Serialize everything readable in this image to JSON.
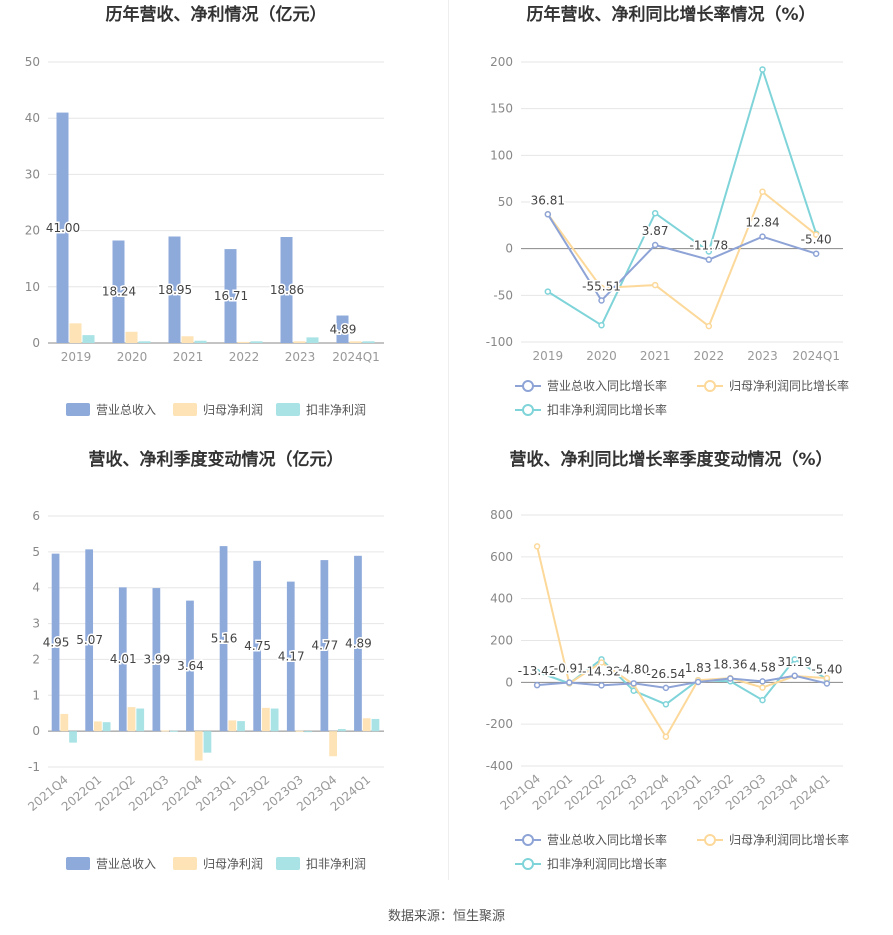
{
  "source_text": "数据来源：恒生聚源",
  "legend_labels": {
    "revenue": "营业总收入",
    "net_profit": "归母净利润",
    "deducted_profit": "扣非净利润",
    "rev_growth": "营业总收入同比增长率",
    "np_growth": "归母净利润同比增长率",
    "dp_growth": "扣非净利润同比增长率"
  },
  "colors": {
    "revenue": "#8eaadb",
    "net_profit": "#fde3b5",
    "deducted_profit": "#a9e3e6",
    "rev_line": "#8ea3d6",
    "np_line": "#fcd99a",
    "dp_line": "#7fd4d9"
  },
  "chart_data": [
    {
      "type": "bar",
      "title": "历年营收、净利情况（亿元）",
      "categories": [
        "2019",
        "2020",
        "2021",
        "2022",
        "2023",
        "2024Q1"
      ],
      "ylim": [
        0,
        50
      ],
      "yticks": [
        0,
        10,
        20,
        30,
        40,
        50
      ],
      "series": [
        {
          "name": "营业总收入",
          "values": [
            41.0,
            18.24,
            18.95,
            16.71,
            18.86,
            4.89
          ],
          "labels": [
            "41.00",
            "18.24",
            "18.95",
            "16.71",
            "18.86",
            "4.89"
          ]
        },
        {
          "name": "归母净利润",
          "values": [
            3.5,
            2.0,
            1.2,
            0.2,
            0.3,
            0.3
          ]
        },
        {
          "name": "扣非净利润",
          "values": [
            1.4,
            0.3,
            0.4,
            0.3,
            1.0,
            0.3
          ]
        }
      ],
      "legend": "bottom"
    },
    {
      "type": "line",
      "title": "历年营收、净利同比增长率情况（%）",
      "categories": [
        "2019",
        "2020",
        "2021",
        "2022",
        "2023",
        "2024Q1"
      ],
      "ylim": [
        -100,
        200
      ],
      "yticks": [
        -100,
        -50,
        0,
        50,
        100,
        150,
        200
      ],
      "series": [
        {
          "name": "营业总收入同比增长率",
          "values": [
            36.81,
            -55.51,
            3.87,
            -11.78,
            12.84,
            -5.4
          ],
          "labels": [
            "36.81",
            "-55.51",
            "3.87",
            "-11.78",
            "12.84",
            "-5.40"
          ]
        },
        {
          "name": "归母净利润同比增长率",
          "values": [
            37,
            -42,
            -39,
            -83,
            61,
            15
          ]
        },
        {
          "name": "扣非净利润同比增长率",
          "values": [
            -46,
            -82,
            38,
            -3,
            192,
            16
          ]
        }
      ],
      "legend": "bottom"
    },
    {
      "type": "bar",
      "title": "营收、净利季度变动情况（亿元）",
      "categories": [
        "2021Q4",
        "2022Q1",
        "2022Q2",
        "2022Q3",
        "2022Q4",
        "2023Q1",
        "2023Q2",
        "2023Q3",
        "2023Q4",
        "2024Q1"
      ],
      "ylim": [
        -1,
        6
      ],
      "yticks": [
        -1,
        0,
        1,
        2,
        3,
        4,
        5,
        6
      ],
      "series": [
        {
          "name": "营业总收入",
          "values": [
            4.95,
            5.07,
            4.01,
            3.99,
            3.64,
            5.16,
            4.75,
            4.17,
            4.77,
            4.89
          ],
          "labels": [
            "4.95",
            "5.07",
            "4.01",
            "3.99",
            "3.64",
            "5.16",
            "4.75",
            "4.17",
            "4.77",
            "4.89"
          ]
        },
        {
          "name": "归母净利润",
          "values": [
            0.48,
            0.27,
            0.67,
            0.02,
            -0.82,
            0.3,
            0.65,
            0.01,
            -0.7,
            0.36
          ]
        },
        {
          "name": "扣非净利润",
          "values": [
            -0.32,
            0.25,
            0.63,
            0.01,
            -0.6,
            0.28,
            0.63,
            -0.02,
            0.06,
            0.34
          ]
        }
      ],
      "legend": "bottom"
    },
    {
      "type": "line",
      "title": "营收、净利同比增长率季度变动情况（%）",
      "categories": [
        "2021Q4",
        "2022Q1",
        "2022Q2",
        "2022Q3",
        "2022Q4",
        "2023Q1",
        "2023Q2",
        "2023Q3",
        "2023Q4",
        "2024Q1"
      ],
      "ylim": [
        -400,
        800
      ],
      "yticks": [
        -400,
        -200,
        0,
        200,
        400,
        600,
        800
      ],
      "series": [
        {
          "name": "营业总收入同比增长率",
          "values": [
            -13.42,
            -0.91,
            -14.32,
            -4.8,
            -26.54,
            1.83,
            18.36,
            4.58,
            31.19,
            -5.4
          ],
          "labels": [
            "-13.42",
            "-0.91",
            "-14.32",
            "-4.80",
            "-26.54",
            "1.83",
            "18.36",
            "4.58",
            "31.19",
            "-5.40"
          ]
        },
        {
          "name": "归母净利润同比增长率",
          "values": [
            650,
            -5,
            95,
            -10,
            -260,
            10,
            20,
            -25,
            30,
            20
          ]
        },
        {
          "name": "扣非净利润同比增长率",
          "values": [
            50,
            -5,
            110,
            -40,
            -105,
            10,
            5,
            -85,
            110,
            15
          ]
        }
      ],
      "legend": "bottom"
    }
  ]
}
